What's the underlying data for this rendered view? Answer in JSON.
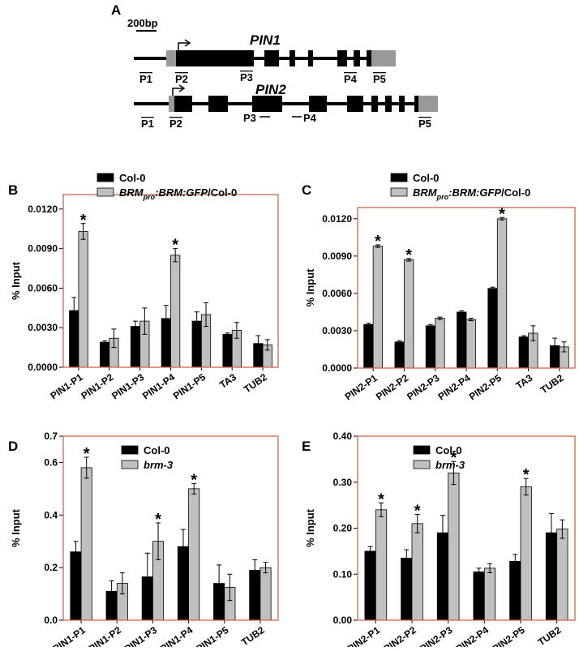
{
  "diagram": {
    "label": "A",
    "scale": "200bp",
    "genes": [
      {
        "name": "PIN1",
        "primers": [
          "P1",
          "P2",
          "P3",
          "P4",
          "P5"
        ]
      },
      {
        "name": "PIN2",
        "primers": [
          "P1",
          "P2",
          "P3",
          "P4",
          "P5"
        ]
      }
    ]
  },
  "chart_data": [
    {
      "type": "bar",
      "label": "B",
      "ylabel": "% Input",
      "categories": [
        "PIN1-P1",
        "PIN1-P2",
        "PIN1-P3",
        "PIN1-P4",
        "PIN1-P5",
        "TA3",
        "TUB2"
      ],
      "series": [
        {
          "name": [
            "Col-0"
          ],
          "color": "#000000",
          "values": [
            0.0043,
            0.0019,
            0.0031,
            0.0037,
            0.0035,
            0.0025,
            0.0018
          ],
          "errors": [
            0.001,
            0.0001,
            0.0004,
            0.001,
            0.0007,
            0.0001,
            0.0006
          ]
        },
        {
          "name": [
            "BRM",
            "pro",
            ":BRM:GFP",
            "/Col-0"
          ],
          "color": "#c0c0c0",
          "values": [
            0.0103,
            0.0022,
            0.0035,
            0.0085,
            0.004,
            0.0028,
            0.0017
          ],
          "errors": [
            0.0006,
            0.0007,
            0.001,
            0.0005,
            0.0009,
            0.0006,
            0.0004
          ],
          "marks": [
            "*",
            null,
            null,
            "*",
            null,
            null,
            null
          ]
        }
      ],
      "ylim": [
        0,
        0.0131
      ],
      "yticks": [
        {
          "value": 0,
          "label": "0.0000"
        },
        {
          "value": 0.003,
          "label": "0.0030"
        },
        {
          "value": 0.006,
          "label": "0.0060"
        },
        {
          "value": 0.009,
          "label": "0.0090"
        },
        {
          "value": 0.012,
          "label": "0.0120"
        }
      ]
    },
    {
      "type": "bar",
      "label": "C",
      "ylabel": "% Input",
      "categories": [
        "PIN2-P1",
        "PIN2-P2",
        "PIN2-P3",
        "PIN2-P4",
        "PIN2-P5",
        "TA3",
        "TUB2"
      ],
      "series": [
        {
          "name": [
            "Col-0"
          ],
          "color": "#000000",
          "values": [
            0.0035,
            0.0021,
            0.0034,
            0.0045,
            0.0064,
            0.0025,
            0.0018
          ],
          "errors": [
            0.0001,
            0.0001,
            0.0001,
            0.0001,
            0.0001,
            0.0001,
            0.0006
          ]
        },
        {
          "name": [
            "BRM",
            "pro",
            ":BRM:GFP",
            "/Col-0"
          ],
          "color": "#c0c0c0",
          "values": [
            0.0098,
            0.0087,
            0.004,
            0.0039,
            0.012,
            0.0028,
            0.0017
          ],
          "errors": [
            0.0001,
            0.0001,
            0.0001,
            0.0001,
            0.0001,
            0.0006,
            0.0004
          ],
          "marks": [
            "*",
            "*",
            null,
            null,
            "*",
            null,
            null
          ]
        }
      ],
      "ylim": [
        0,
        0.0129
      ],
      "yticks": [
        {
          "value": 0,
          "label": "0.0000"
        },
        {
          "value": 0.003,
          "label": "0.0030"
        },
        {
          "value": 0.006,
          "label": "0.0060"
        },
        {
          "value": 0.009,
          "label": "0.0090"
        },
        {
          "value": 0.012,
          "label": "0.0120"
        }
      ]
    },
    {
      "type": "bar",
      "label": "D",
      "ylabel": "% Input",
      "categories": [
        "PIN1-P1",
        "PIN1-P2",
        "PIN1-P3",
        "PIN1-P4",
        "PIN1-P5",
        "TUB2"
      ],
      "series": [
        {
          "name": [
            "Col-0"
          ],
          "color": "#000000",
          "values": [
            0.26,
            0.11,
            0.165,
            0.28,
            0.14,
            0.19
          ],
          "errors": [
            0.04,
            0.04,
            0.09,
            0.065,
            0.07,
            0.04
          ]
        },
        {
          "name": [
            "brm-3"
          ],
          "color": "#c0c0c0",
          "values": [
            0.58,
            0.14,
            0.3,
            0.5,
            0.125,
            0.2
          ],
          "errors": [
            0.04,
            0.04,
            0.07,
            0.02,
            0.05,
            0.02
          ],
          "marks": [
            "*",
            null,
            "*",
            "*",
            null,
            null
          ]
        }
      ],
      "ylim": [
        0,
        0.7
      ],
      "yticks": [
        {
          "value": 0,
          "label": "0.0"
        },
        {
          "value": 0.2,
          "label": "0.2"
        },
        {
          "value": 0.4,
          "label": "0.4"
        },
        {
          "value": 0.6,
          "label": "0.6"
        },
        {
          "value": 0.7,
          "label": "0.7"
        }
      ]
    },
    {
      "type": "bar",
      "label": "E",
      "ylabel": "% Input",
      "categories": [
        "PIN2-P1",
        "PIN2-P2",
        "PIN2-P3",
        "PIN2-P4",
        "PIN2-P5",
        "TUB2"
      ],
      "series": [
        {
          "name": [
            "Col-0"
          ],
          "color": "#000000",
          "values": [
            0.15,
            0.135,
            0.19,
            0.105,
            0.128,
            0.19
          ],
          "errors": [
            0.01,
            0.018,
            0.038,
            0.008,
            0.015,
            0.042
          ]
        },
        {
          "name": [
            "brm-3"
          ],
          "color": "#c0c0c0",
          "values": [
            0.24,
            0.21,
            0.32,
            0.113,
            0.29,
            0.198
          ],
          "errors": [
            0.015,
            0.02,
            0.025,
            0.01,
            0.018,
            0.02
          ],
          "marks": [
            "*",
            "*",
            "*",
            null,
            "*",
            null
          ]
        }
      ],
      "ylim": [
        0,
        0.4
      ],
      "yticks": [
        {
          "value": 0,
          "label": "0.00"
        },
        {
          "value": 0.1,
          "label": "0.10"
        },
        {
          "value": 0.2,
          "label": "0.20"
        },
        {
          "value": 0.3,
          "label": "0.30"
        },
        {
          "value": 0.4,
          "label": "0.40"
        }
      ]
    }
  ]
}
